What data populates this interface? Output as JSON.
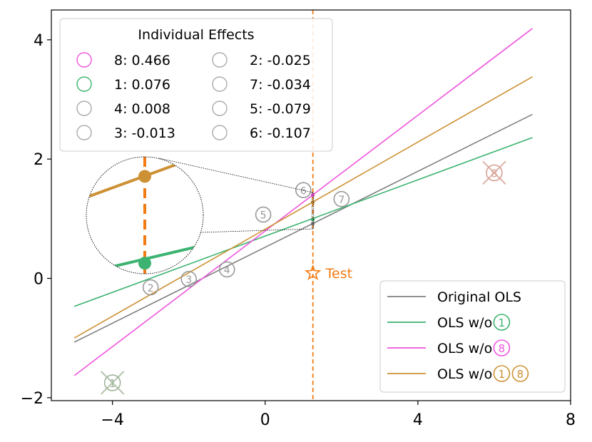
{
  "chart_data": {
    "type": "scatter",
    "xlim": [
      -5.6,
      8
    ],
    "ylim": [
      -2.05,
      4.5
    ],
    "x_ticks": [
      -4,
      0,
      4,
      8
    ],
    "x_tick_labels": [
      "−4",
      "0",
      "4",
      "8"
    ],
    "y_ticks": [
      -2,
      0,
      2,
      4
    ],
    "y_tick_labels": [
      "−2",
      "0",
      "2",
      "4"
    ],
    "grid": false,
    "colors": {
      "original": "#808080",
      "wo1": "#3cb371",
      "wo8": "#ee55dd",
      "wo18": "#cd9135",
      "test": "#f27b14",
      "neutral_marker": "#aaaaaa"
    },
    "points": [
      {
        "label": "1",
        "x": -4.0,
        "y": -1.75,
        "removed": true,
        "color": "#9fb59a"
      },
      {
        "label": "2",
        "x": -3.0,
        "y": -0.15
      },
      {
        "label": "3",
        "x": -2.0,
        "y": -0.01
      },
      {
        "label": "4",
        "x": -1.0,
        "y": 0.15
      },
      {
        "label": "5",
        "x": -0.05,
        "y": 1.07
      },
      {
        "label": "6",
        "x": 1.0,
        "y": 1.48
      },
      {
        "label": "7",
        "x": 2.0,
        "y": 1.33
      },
      {
        "label": "8",
        "x": 6.0,
        "y": 1.77,
        "removed": true,
        "color": "#d7a196"
      }
    ],
    "series": [
      {
        "name": "Original OLS",
        "color": "#808080",
        "x": [
          -5,
          7
        ],
        "y": [
          -1.07,
          2.75
        ]
      },
      {
        "name": "OLS w/o",
        "color": "#3cb371",
        "x": [
          -5,
          7
        ],
        "y": [
          -0.47,
          2.36
        ],
        "badges": [
          "1"
        ]
      },
      {
        "name": "OLS w/o",
        "color": "#ee55dd",
        "x": [
          -5,
          7
        ],
        "y": [
          -1.63,
          4.19
        ],
        "badges": [
          "8"
        ]
      },
      {
        "name": "OLS w/o",
        "color": "#cd9135",
        "x": [
          -5,
          7
        ],
        "y": [
          -1.0,
          3.38
        ],
        "badges": [
          "1",
          "8"
        ]
      }
    ],
    "test_point": {
      "label": "Test",
      "x": 1.25,
      "y": 0.09
    },
    "test_line_x": 1.25,
    "inset": {
      "markers": [
        {
          "y": 1.4,
          "color": "#ee55dd"
        },
        {
          "y": 1.28,
          "color": "#cd9135"
        },
        {
          "y": 0.99,
          "color": "#3cb371"
        },
        {
          "y": 0.92,
          "color": "#808080"
        }
      ]
    },
    "individual_effects": {
      "title": "Individual Effects",
      "entries": [
        {
          "label": "8:  0.466",
          "color": "#ee55dd"
        },
        {
          "label": "1:  0.076",
          "color": "#3cb371"
        },
        {
          "label": "4:  0.008",
          "color": "#aaaaaa"
        },
        {
          "label": "3: -0.013",
          "color": "#aaaaaa"
        },
        {
          "label": "2: -0.025",
          "color": "#aaaaaa"
        },
        {
          "label": "7: -0.034",
          "color": "#aaaaaa"
        },
        {
          "label": "5: -0.079",
          "color": "#aaaaaa"
        },
        {
          "label": "6: -0.107",
          "color": "#aaaaaa"
        }
      ]
    },
    "legend_placement": "bottom-right"
  }
}
